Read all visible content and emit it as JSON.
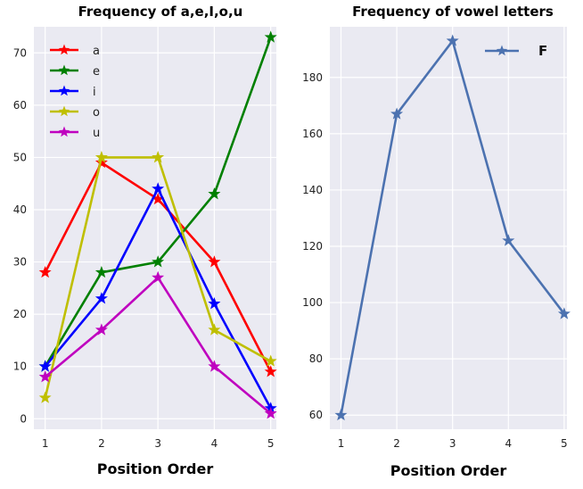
{
  "chart_data": [
    {
      "type": "line",
      "title": "Frequency of a,e,I,o,u",
      "xlabel": "Position Order",
      "ylabel": "",
      "x": [
        1,
        2,
        3,
        4,
        5
      ],
      "xlim": [
        0.8,
        5.1
      ],
      "ylim": [
        -2,
        75
      ],
      "yticks": [
        0,
        10,
        20,
        30,
        40,
        50,
        60,
        70
      ],
      "grid": true,
      "marker": "star",
      "legend_position": "top-left",
      "series": [
        {
          "name": "a",
          "color": "#ff0000",
          "values": [
            28,
            49,
            42,
            30,
            9
          ]
        },
        {
          "name": "e",
          "color": "#008000",
          "values": [
            10,
            28,
            30,
            43,
            73
          ]
        },
        {
          "name": "i",
          "color": "#0000ff",
          "values": [
            10,
            23,
            44,
            22,
            2
          ]
        },
        {
          "name": "o",
          "color": "#bfbf00",
          "values": [
            4,
            50,
            50,
            17,
            11
          ]
        },
        {
          "name": "u",
          "color": "#bf00bf",
          "values": [
            8,
            17,
            27,
            10,
            1
          ]
        }
      ]
    },
    {
      "type": "line",
      "title": "Frequency of vowel letters",
      "xlabel": "Position Order",
      "ylabel": "",
      "x": [
        1,
        2,
        3,
        4,
        5
      ],
      "xlim": [
        0.8,
        5.05
      ],
      "ylim": [
        55,
        198
      ],
      "yticks": [
        60,
        80,
        100,
        120,
        140,
        160,
        180
      ],
      "grid": true,
      "marker": "star",
      "legend_position": "top-right",
      "series": [
        {
          "name": "F",
          "color": "#4c72b0",
          "values": [
            60,
            167,
            193,
            122,
            96
          ]
        }
      ]
    }
  ]
}
